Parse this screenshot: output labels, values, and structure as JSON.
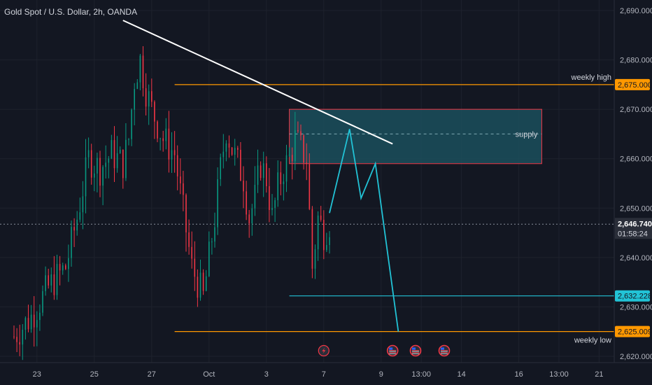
{
  "header": {
    "symbol_title": "Gold Spot / U.S. Dollar, 2h, OANDA"
  },
  "colors": {
    "background": "#131722",
    "grid": "#1e222d",
    "up": "#089981",
    "down": "#f23645",
    "orange": "#ff9800",
    "cyan": "#22c3d6",
    "zone_fill": "#1b4f5c",
    "zone_border": "#f23645",
    "trendline": "#ffffff",
    "label_text": "#d1d4dc"
  },
  "chart_data": {
    "type": "candlestick",
    "symbol": "Gold Spot / U.S. Dollar",
    "interval": "2h",
    "source": "OANDA",
    "ylim": [
      2618,
      2694
    ],
    "y_ticks": [
      2620,
      2630,
      2640,
      2650,
      2660,
      2670,
      2680,
      2690
    ],
    "y_tick_labels": [
      "2,620.000",
      "2,630.000",
      "2,640.000",
      "2,650.000",
      "2,660.000",
      "2,670.000",
      "2,680.000",
      "2,690.000"
    ],
    "x_range": [
      0,
      103
    ],
    "x_ticks": [
      {
        "bar": 4,
        "label": "23"
      },
      {
        "bar": 14,
        "label": "25"
      },
      {
        "bar": 24,
        "label": "27"
      },
      {
        "bar": 34,
        "label": "Oct"
      },
      {
        "bar": 44,
        "label": "3"
      },
      {
        "bar": 54,
        "label": "7"
      },
      {
        "bar": 64,
        "label": "9"
      },
      {
        "bar": 71,
        "label": "13:00"
      },
      {
        "bar": 78,
        "label": "14"
      },
      {
        "bar": 88,
        "label": "16"
      },
      {
        "bar": 95,
        "label": "13:00"
      },
      {
        "bar": 102,
        "label": "21"
      }
    ],
    "price_path": [
      [
        0,
        2624
      ],
      [
        3,
        2628
      ],
      [
        6,
        2634
      ],
      [
        9,
        2638
      ],
      [
        11,
        2648
      ],
      [
        12,
        2654
      ],
      [
        13,
        2660
      ],
      [
        15,
        2658
      ],
      [
        17,
        2661
      ],
      [
        19,
        2659
      ],
      [
        20,
        2664
      ],
      [
        21,
        2676
      ],
      [
        22,
        2680
      ],
      [
        23,
        2674
      ],
      [
        24,
        2670
      ],
      [
        26,
        2664
      ],
      [
        28,
        2661
      ],
      [
        29,
        2653
      ],
      [
        31,
        2638
      ],
      [
        33,
        2632
      ],
      [
        34,
        2640
      ],
      [
        35,
        2648
      ],
      [
        36,
        2658
      ],
      [
        37,
        2666
      ],
      [
        38,
        2662
      ],
      [
        40,
        2656
      ],
      [
        41,
        2648
      ],
      [
        42,
        2652
      ],
      [
        43,
        2659
      ],
      [
        44,
        2656
      ],
      [
        45,
        2648
      ],
      [
        46,
        2654
      ],
      [
        47,
        2658
      ],
      [
        48,
        2660
      ],
      [
        49,
        2664
      ],
      [
        50,
        2662
      ],
      [
        51,
        2660
      ],
      [
        52,
        2638
      ],
      [
        53,
        2648
      ],
      [
        54,
        2645
      ],
      [
        55,
        2647
      ]
    ],
    "current_price": 2646.74,
    "current_price_label": "2,646.740",
    "countdown": "01:58:24",
    "levels": [
      {
        "label": "weekly high",
        "value": 2675.0,
        "value_label": "2,675.000",
        "color": "#ff9800",
        "start_bar": 28
      },
      {
        "label": "",
        "value": 2632.228,
        "value_label": "2,632.228",
        "color": "#22c3d6",
        "start_bar": 48
      },
      {
        "label": "weekly low",
        "value": 2625.009,
        "value_label": "2,625.009",
        "color": "#ff9800",
        "start_bar": 28
      }
    ],
    "zone": {
      "label": "supply",
      "top": 2670,
      "bottom": 2659,
      "mid": 2665,
      "start_bar": 48,
      "end_bar": 92
    },
    "trendline": [
      [
        19,
        2688
      ],
      [
        66,
        2663
      ]
    ],
    "projection": [
      [
        55,
        2649
      ],
      [
        58.5,
        2666
      ],
      [
        60.5,
        2652
      ],
      [
        63,
        2659
      ],
      [
        67,
        2625
      ]
    ],
    "event_markers": [
      {
        "bar": 54,
        "icon": "lightning-icon"
      },
      {
        "bar": 66,
        "icon": "us-flag-icon"
      },
      {
        "bar": 70,
        "icon": "us-flag-icon"
      },
      {
        "bar": 75,
        "icon": "us-flag-icon"
      }
    ]
  }
}
